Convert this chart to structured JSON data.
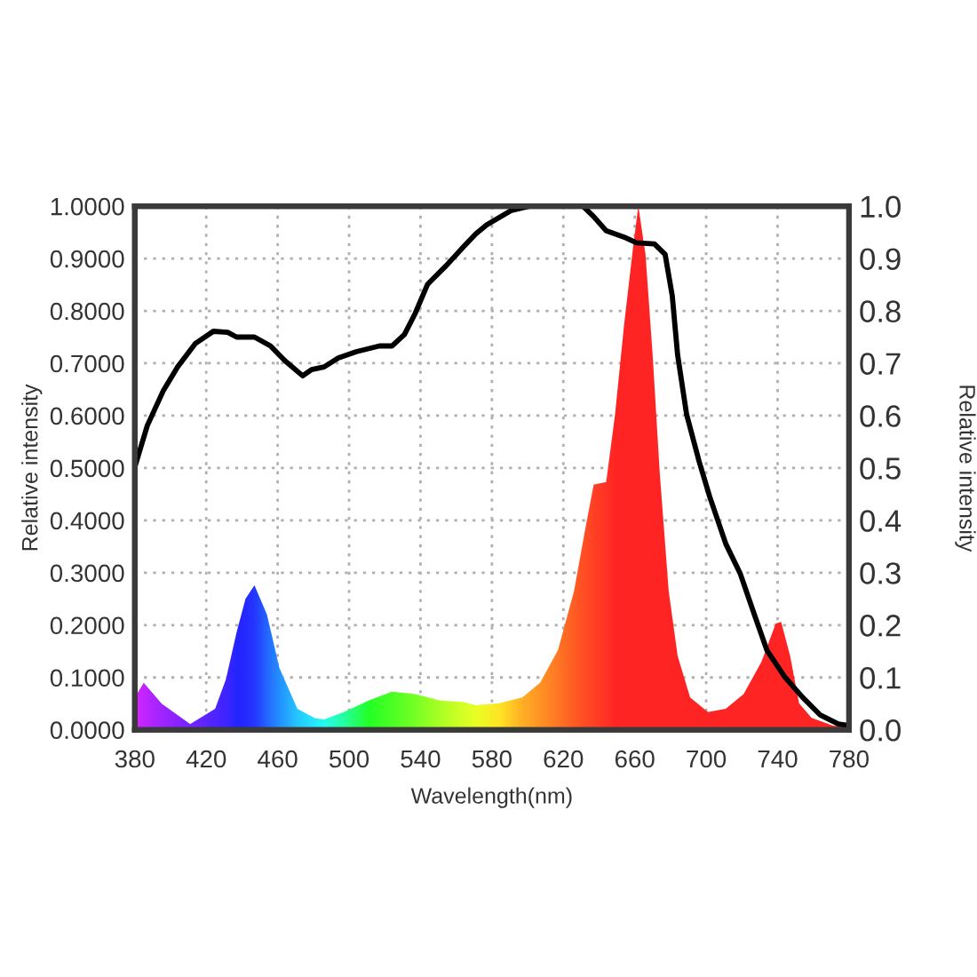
{
  "chart_data": {
    "type": "area",
    "xlabel": "Wavelength(nm)",
    "ylabel": "Relative intensity",
    "y2label": "Relative intensity",
    "xlim": [
      380,
      780
    ],
    "xticks": [
      380,
      420,
      460,
      500,
      540,
      580,
      620,
      660,
      700,
      740,
      780
    ],
    "ylim": [
      0,
      1
    ],
    "yticks": [
      {
        "value": 0,
        "label": "0.0000"
      },
      {
        "value": 0.1,
        "label": "0.1000"
      },
      {
        "value": 0.2,
        "label": "0.2000"
      },
      {
        "value": 0.3,
        "label": "0.3000"
      },
      {
        "value": 0.4,
        "label": "0.4000"
      },
      {
        "value": 0.5,
        "label": "0.5000"
      },
      {
        "value": 0.6,
        "label": "0.6000"
      },
      {
        "value": 0.7,
        "label": "0.7000"
      },
      {
        "value": 0.8,
        "label": "0.8000"
      },
      {
        "value": 0.9,
        "label": "0.9000"
      },
      {
        "value": 1,
        "label": "1.0000"
      }
    ],
    "y2lim": [
      0,
      1
    ],
    "y2ticks": [
      {
        "value": 0,
        "label": "0.0"
      },
      {
        "value": 0.1,
        "label": "0.1"
      },
      {
        "value": 0.2,
        "label": "0.2"
      },
      {
        "value": 0.3,
        "label": "0.3"
      },
      {
        "value": 0.4,
        "label": "0.4"
      },
      {
        "value": 0.5,
        "label": "0.5"
      },
      {
        "value": 0.6,
        "label": "0.6"
      },
      {
        "value": 0.7,
        "label": "0.7"
      },
      {
        "value": 0.8,
        "label": "0.8"
      },
      {
        "value": 0.9,
        "label": "0.9"
      },
      {
        "value": 1,
        "label": "1.0"
      }
    ],
    "grid": true,
    "marker": "none",
    "line_style": "solid",
    "series": [
      {
        "x": [
          380,
          385,
          395,
          411,
          425,
          431,
          437,
          442,
          447,
          454,
          461,
          471,
          481,
          486,
          497,
          511,
          524,
          537,
          551,
          564,
          571,
          584,
          597,
          607,
          617,
          626,
          632,
          637,
          644,
          649,
          654,
          659,
          662,
          666,
          670,
          674,
          679,
          684,
          691,
          701,
          711,
          721,
          731,
          739,
          742,
          747,
          752,
          759,
          771,
          780
        ],
        "values": [
          0.062,
          0.09,
          0.05,
          0.011,
          0.04,
          0.096,
          0.186,
          0.25,
          0.276,
          0.22,
          0.118,
          0.04,
          0.022,
          0.02,
          0.034,
          0.056,
          0.073,
          0.068,
          0.056,
          0.053,
          0.047,
          0.051,
          0.062,
          0.09,
          0.152,
          0.265,
          0.378,
          0.468,
          0.473,
          0.603,
          0.772,
          0.919,
          1.0,
          0.908,
          0.716,
          0.49,
          0.265,
          0.141,
          0.062,
          0.034,
          0.04,
          0.068,
          0.13,
          0.203,
          0.206,
          0.141,
          0.051,
          0.023,
          0.008,
          0.005
        ],
        "colors": [
          "#d000ff",
          "#b800ff",
          "#9000ff",
          "#6000ff",
          "#3000ff",
          "#2000ff",
          "#0000ff",
          "#0008ff",
          "#0018ff",
          "#0050ff",
          "#0080ff",
          "#00c0ff",
          "#00e8ff",
          "#00ffe8",
          "#00ff90",
          "#00ff00",
          "#30ff00",
          "#60ff00",
          "#a0ff00",
          "#d0ff00",
          "#e8ff00",
          "#ffe000",
          "#ffa000",
          "#ff8000",
          "#ff6000",
          "#ff4000",
          "#ff3000",
          "#ff2000",
          "#ff1000",
          "#ff0000",
          "#ff0000",
          "#ff0000",
          "#ff0000",
          "#ff0000",
          "#ff0000",
          "#ff0000",
          "#ff0000",
          "#ff0000",
          "#ff0000",
          "#ff0000",
          "#ff0000",
          "#ff0000",
          "#ff0000",
          "#ff0000",
          "#ff0000",
          "#ff0000",
          "#ff0000",
          "#ff0000",
          "#ff0000",
          "#ff0000"
        ]
      },
      {
        "type": "line",
        "axis": "y2",
        "color": "#000000",
        "x": [
          380,
          387,
          396,
          404,
          414,
          424,
          432,
          437,
          447,
          456,
          464,
          474,
          479,
          486,
          494,
          504,
          517,
          524,
          531,
          537,
          544,
          554,
          564,
          571,
          577,
          591,
          601,
          631,
          637,
          644,
          654,
          661,
          671,
          677,
          681,
          684,
          689,
          696,
          702,
          711,
          719,
          727,
          734,
          744,
          754,
          764,
          774,
          780
        ],
        "values": [
          0.502,
          0.581,
          0.648,
          0.693,
          0.738,
          0.761,
          0.759,
          0.75,
          0.75,
          0.733,
          0.705,
          0.676,
          0.688,
          0.693,
          0.71,
          0.722,
          0.733,
          0.733,
          0.755,
          0.795,
          0.851,
          0.885,
          0.922,
          0.947,
          0.964,
          0.992,
          1.0,
          1.0,
          0.98,
          0.953,
          0.941,
          0.93,
          0.928,
          0.908,
          0.829,
          0.716,
          0.603,
          0.513,
          0.445,
          0.355,
          0.299,
          0.22,
          0.152,
          0.101,
          0.062,
          0.028,
          0.011,
          0.008
        ]
      }
    ]
  }
}
